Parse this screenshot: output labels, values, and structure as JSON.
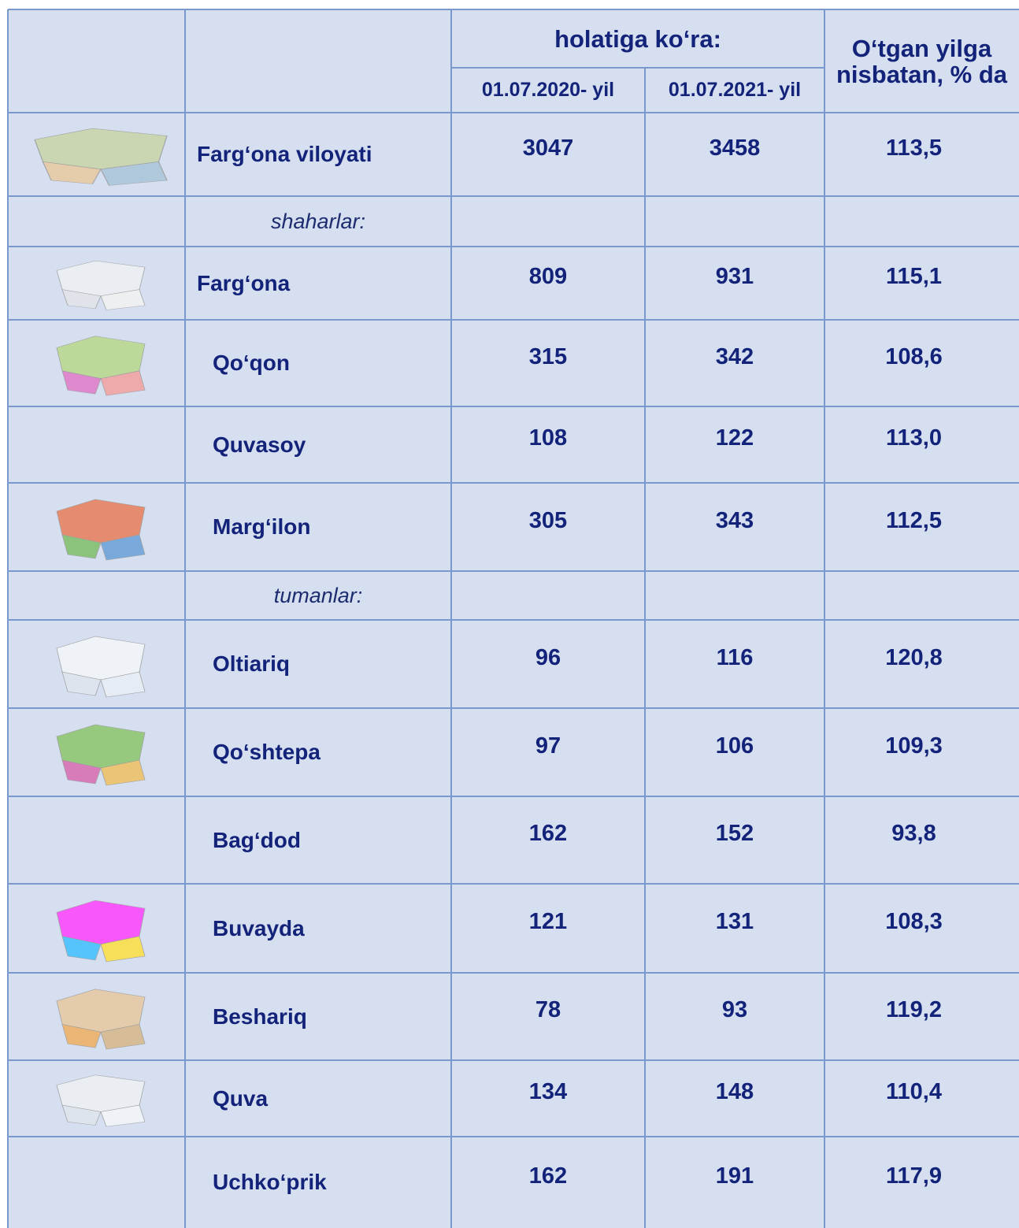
{
  "table": {
    "header": {
      "group": "holatiga ko‘ra:",
      "col_2020": "01.07.2020- yil",
      "col_2021": "01.07.2021- yil",
      "change": "O‘tgan yilga nisbatan, % da"
    },
    "rows": [
      {
        "name": "Farg‘ona viloyati",
        "v2020": "3047",
        "v2021": "3458",
        "change": "113,5"
      },
      {
        "section": "shaharlar:"
      },
      {
        "name": "Farg‘ona",
        "v2020": "809",
        "v2021": "931",
        "change": "115,1"
      },
      {
        "name": "Qo‘qon",
        "v2020": "315",
        "v2021": "342",
        "change": "108,6"
      },
      {
        "name": "Quvasoy",
        "v2020": "108",
        "v2021": "122",
        "change": "113,0"
      },
      {
        "name": "Marg‘ilon",
        "v2020": "305",
        "v2021": "343",
        "change": "112,5"
      },
      {
        "section": "tumanlar:"
      },
      {
        "name": "Oltiariq",
        "v2020": "96",
        "v2021": "116",
        "change": "120,8"
      },
      {
        "name": "Qo‘shtepa",
        "v2020": "97",
        "v2021": "106",
        "change": "109,3"
      },
      {
        "name": "Bag‘dod",
        "v2020": "162",
        "v2021": "152",
        "change": "93,8"
      },
      {
        "name": "Buvayda",
        "v2020": "121",
        "v2021": "131",
        "change": "108,3"
      },
      {
        "name": "Beshariq",
        "v2020": "78",
        "v2021": "93",
        "change": "119,2"
      },
      {
        "name": "Quva",
        "v2020": "134",
        "v2021": "148",
        "change": "110,4"
      },
      {
        "name": "Uchko‘prik",
        "v2020": "162",
        "v2021": "191",
        "change": "117,9"
      }
    ]
  }
}
